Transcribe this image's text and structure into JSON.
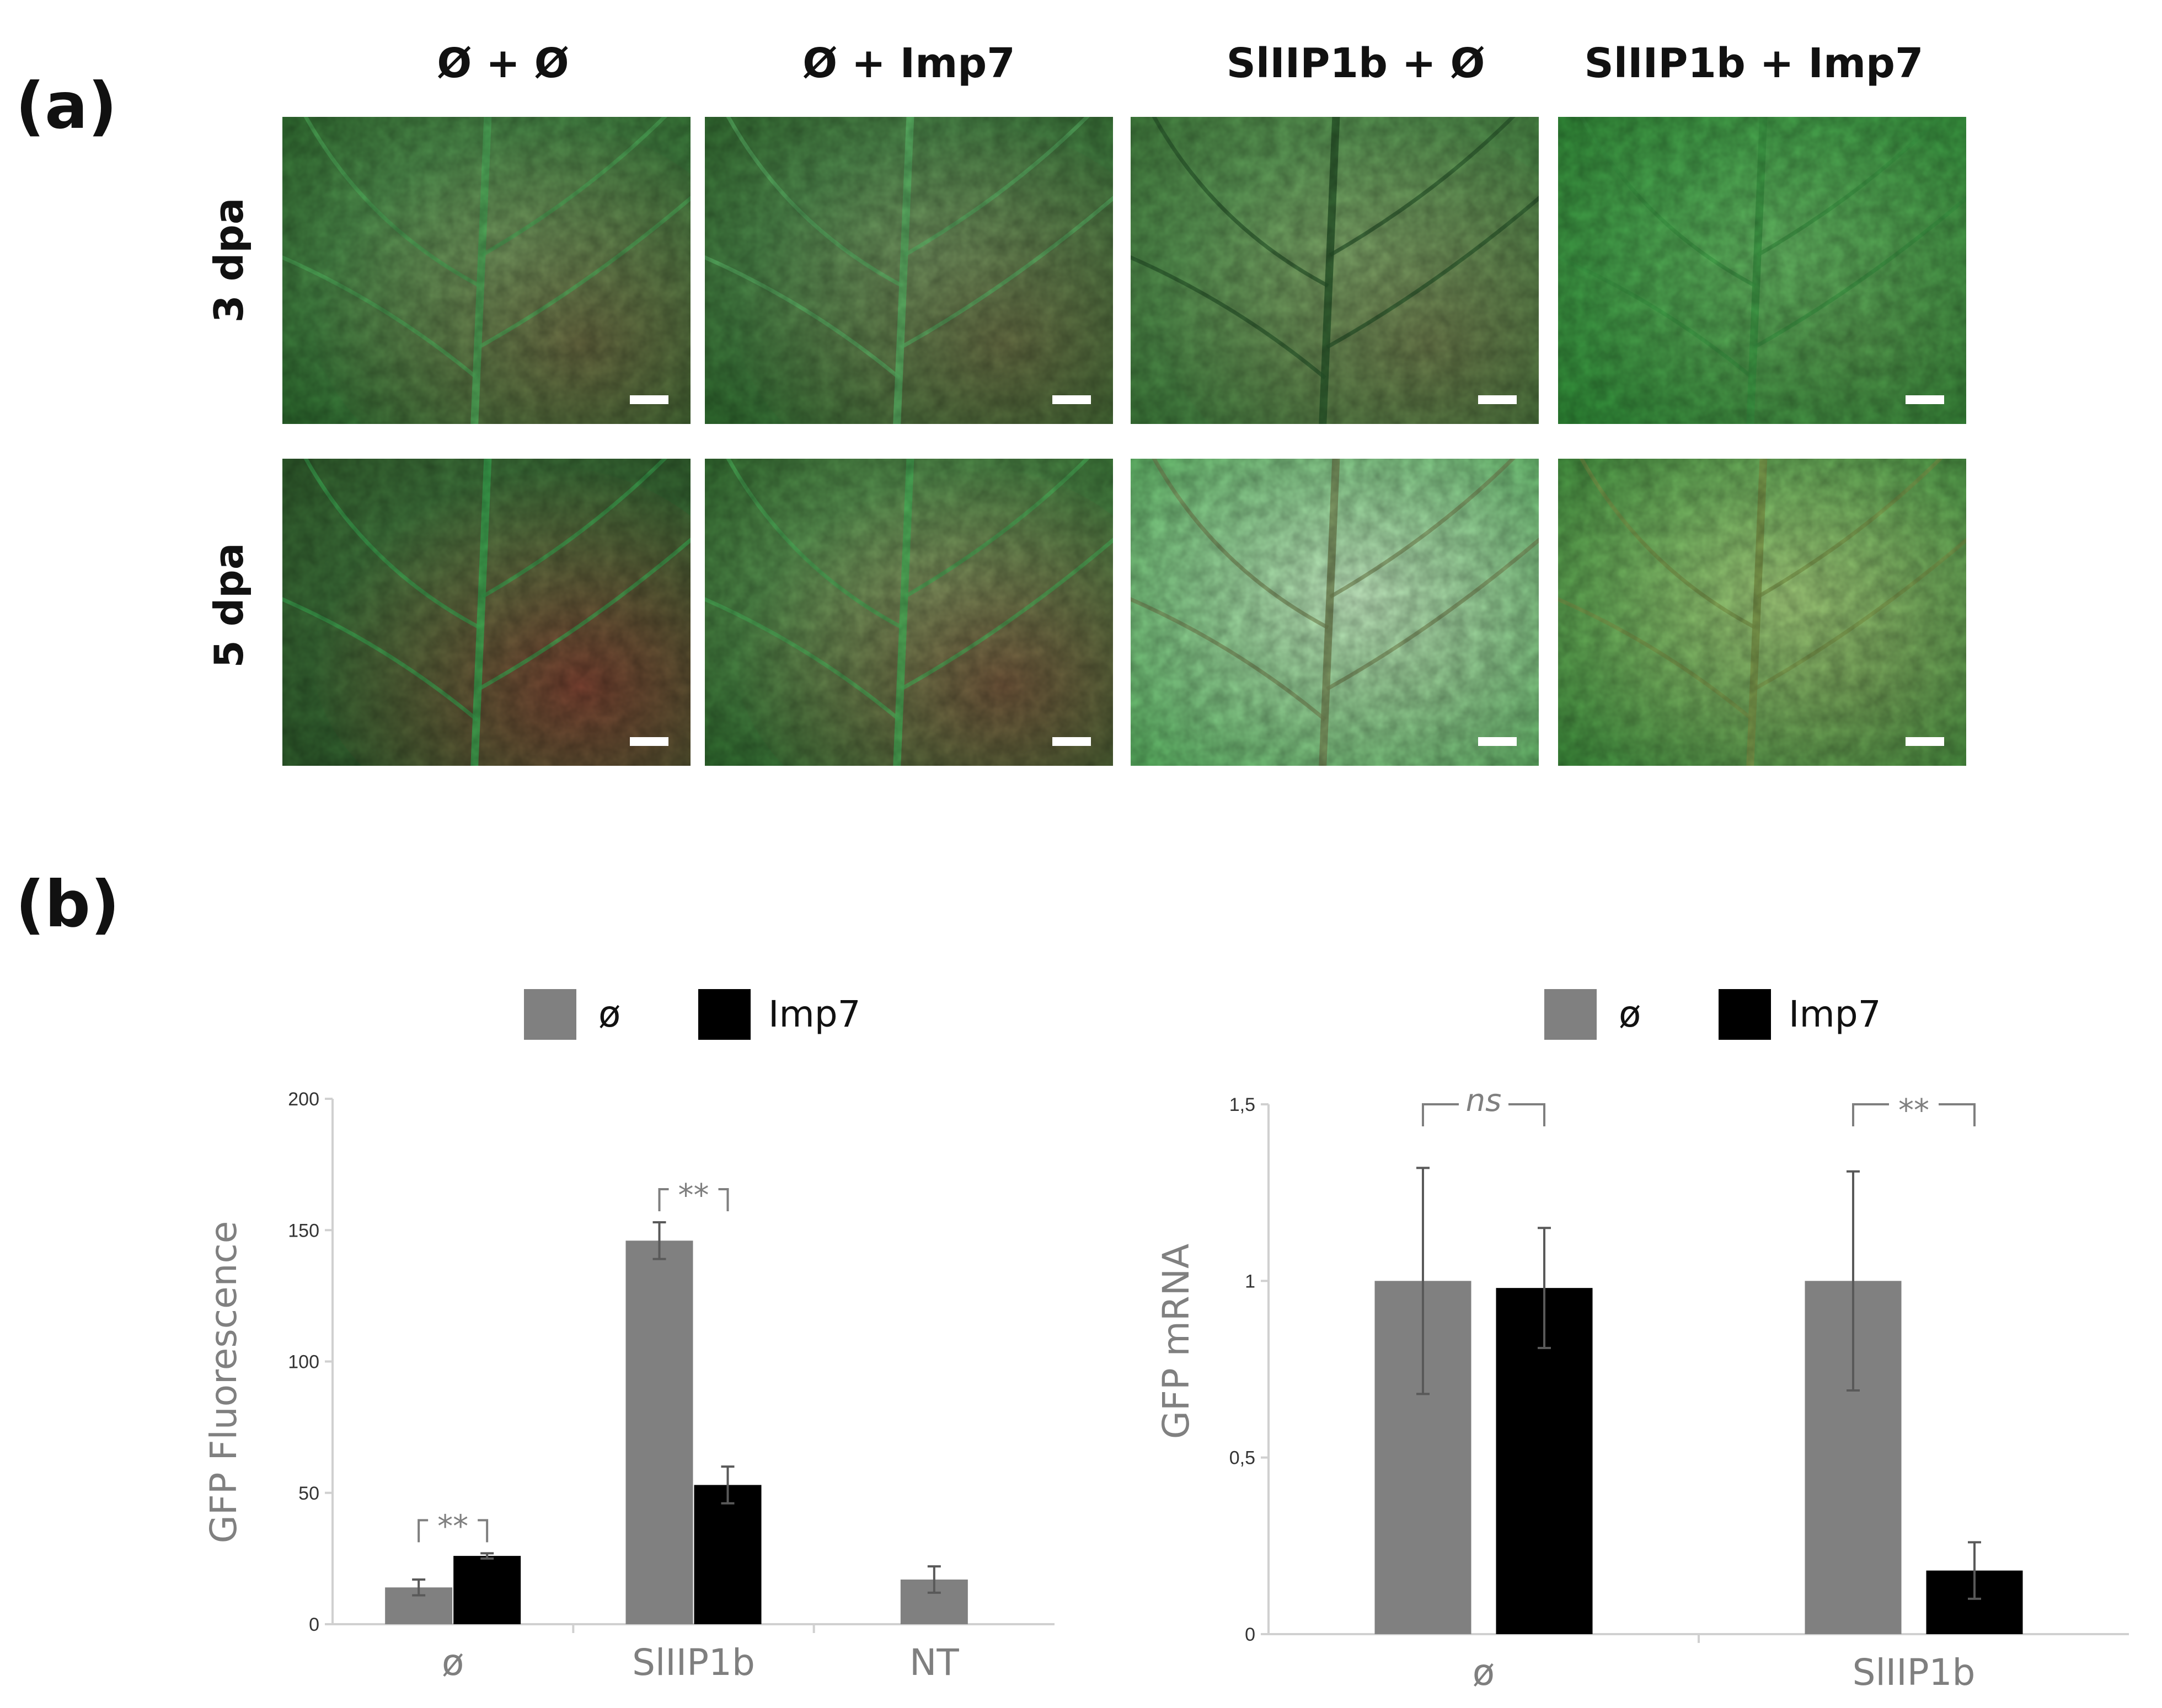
{
  "figure": {
    "panel_a_label": "(a)",
    "panel_b_label": "(b)",
    "column_headers": [
      "Ø + Ø",
      "Ø + Imp7",
      "SlIIP1b + Ø",
      "SlIIP1b + Imp7"
    ],
    "row_headers": [
      "3 dpa",
      "5 dpa"
    ],
    "images": [
      {
        "row": 0,
        "col": 0,
        "base": "#2d6b2e",
        "light": "#6fb06a",
        "red": "#7a4a36",
        "red_amount": 0.35,
        "veins": "#4fae5a"
      },
      {
        "row": 0,
        "col": 1,
        "base": "#2f6a2e",
        "light": "#6ea86a",
        "red": "#7a4a36",
        "red_amount": 0.3,
        "veins": "#5ab565"
      },
      {
        "row": 0,
        "col": 2,
        "base": "#3d7a3a",
        "light": "#7dbb73",
        "red": "#7a4636",
        "red_amount": 0.25,
        "veins": "#2a5a2c"
      },
      {
        "row": 0,
        "col": 3,
        "base": "#2f8a36",
        "light": "#62c266",
        "red": "#7c4038",
        "red_amount": 0.1,
        "veins": "#3c9a44"
      },
      {
        "row": 1,
        "col": 0,
        "base": "#2d5a2a",
        "light": "#4f8a4a",
        "red": "#7c3e30",
        "red_amount": 0.6,
        "veins": "#3cab52"
      },
      {
        "row": 1,
        "col": 1,
        "base": "#2f6a2e",
        "light": "#7fb870",
        "red": "#7a3e32",
        "red_amount": 0.45,
        "veins": "#4ab058"
      },
      {
        "row": 1,
        "col": 2,
        "base": "#5cb563",
        "light": "#c6f0c6",
        "red": "#8a6a50",
        "red_amount": 0.05,
        "veins": "#7a8f5a"
      },
      {
        "row": 1,
        "col": 3,
        "base": "#3e8e3c",
        "light": "#a9dc84",
        "red": "#6e5030",
        "red_amount": 0.12,
        "veins": "#7e9a4a"
      }
    ]
  },
  "colors": {
    "empty_vector": "#808080",
    "imp7": "#000000",
    "error_bar": "#595959",
    "sig_bracket": "#7f7f7f"
  },
  "chart_data": [
    {
      "type": "bar",
      "ylabel": "GFP Fluorescence",
      "xlabel": "",
      "ylim": [
        0,
        200
      ],
      "yticks": [
        "0",
        "50",
        "100",
        "150",
        "200"
      ],
      "ytick_values": [
        0,
        50,
        100,
        150,
        200
      ],
      "categories": [
        "ø",
        "SlIIP1b",
        "NT"
      ],
      "legend": [
        "ø",
        "Imp7"
      ],
      "legend_position": "top-center",
      "grid": false,
      "series": [
        {
          "name": "ø",
          "values": [
            14,
            146,
            17
          ],
          "errors": [
            3,
            7,
            5
          ]
        },
        {
          "name": "Imp7",
          "values": [
            26,
            53,
            null
          ],
          "errors": [
            1,
            7,
            null
          ]
        }
      ],
      "significance": [
        {
          "category": 0,
          "label": "**"
        },
        {
          "category": 1,
          "label": "**"
        }
      ]
    },
    {
      "type": "bar",
      "ylabel": "GFP mRNA",
      "xlabel": "",
      "ylim": [
        0,
        1.5
      ],
      "yticks": [
        "0",
        "0,5",
        "1",
        "1,5"
      ],
      "ytick_values": [
        0,
        0.5,
        1,
        1.5
      ],
      "categories": [
        "ø",
        "SlIIP1b"
      ],
      "legend": [
        "ø",
        "Imp7"
      ],
      "legend_position": "top-center",
      "grid": false,
      "series": [
        {
          "name": "ø",
          "values": [
            1.0,
            1.0
          ],
          "errors": [
            0.32,
            0.31
          ]
        },
        {
          "name": "Imp7",
          "values": [
            0.98,
            0.18
          ],
          "errors": [
            0.17,
            0.08
          ]
        }
      ],
      "significance": [
        {
          "category": 0,
          "label": "ns"
        },
        {
          "category": 1,
          "label": "**"
        }
      ]
    }
  ]
}
